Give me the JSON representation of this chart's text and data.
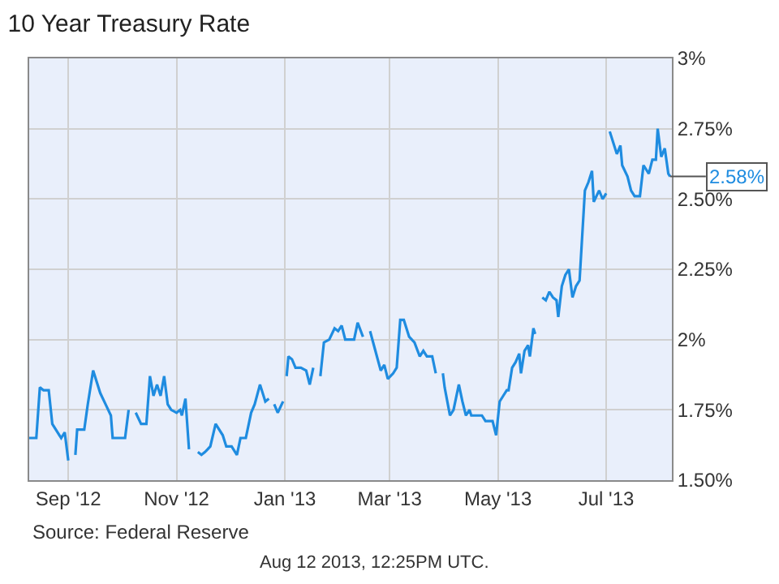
{
  "chart_data": {
    "type": "line",
    "title": "10 Year Treasury Rate",
    "x": [
      "2012-08-10",
      "2012-08-14",
      "2012-08-16",
      "2012-08-18",
      "2012-08-21",
      "2012-08-23",
      "2012-08-27",
      "2012-08-28",
      "2012-08-30",
      "2012-09-01",
      "2012-09-02",
      "2012-09-05",
      "2012-09-06",
      "2012-09-10",
      "2012-09-12",
      "2012-09-15",
      "2012-09-19",
      "2012-09-22",
      "2012-09-25",
      "2012-09-26",
      "2012-09-28",
      "2012-10-03",
      "2012-10-05",
      "2012-10-07",
      "2012-10-09",
      "2012-10-12",
      "2012-10-15",
      "2012-10-17",
      "2012-10-19",
      "2012-10-21",
      "2012-10-23",
      "2012-10-25",
      "2012-10-27",
      "2012-10-29",
      "2012-11-01",
      "2012-11-03",
      "2012-11-04",
      "2012-11-06",
      "2012-11-08",
      "2012-11-11",
      "2012-11-13",
      "2012-11-15",
      "2012-11-17",
      "2012-11-20",
      "2012-11-23",
      "2012-11-27",
      "2012-11-29",
      "2012-12-02",
      "2012-12-05",
      "2012-12-07",
      "2012-12-10",
      "2012-12-13",
      "2012-12-15",
      "2012-12-18",
      "2012-12-21",
      "2012-12-23",
      "2012-12-24",
      "2012-12-26",
      "2012-12-28",
      "2012-12-31",
      "2013-01-01",
      "2013-01-02",
      "2013-01-03",
      "2013-01-05",
      "2013-01-07",
      "2013-01-10",
      "2013-01-13",
      "2013-01-15",
      "2013-01-17",
      "2013-01-19",
      "2013-01-21",
      "2013-01-23",
      "2013-01-26",
      "2013-01-29",
      "2013-01-31",
      "2013-02-02",
      "2013-02-04",
      "2013-02-06",
      "2013-02-09",
      "2013-02-11",
      "2013-02-14",
      "2013-02-16",
      "2013-02-18",
      "2013-02-21",
      "2013-02-24",
      "2013-02-26",
      "2013-02-28",
      "2013-03-03",
      "2013-03-05",
      "2013-03-07",
      "2013-03-09",
      "2013-03-12",
      "2013-03-15",
      "2013-03-18",
      "2013-03-20",
      "2013-03-22",
      "2013-03-25",
      "2013-03-27",
      "2013-03-29",
      "2013-03-31",
      "2013-04-01",
      "2013-04-04",
      "2013-04-06",
      "2013-04-09",
      "2013-04-11",
      "2013-04-13",
      "2013-04-15",
      "2013-04-16",
      "2013-04-19",
      "2013-04-22",
      "2013-04-24",
      "2013-04-25",
      "2013-04-28",
      "2013-04-30",
      "2013-05-02",
      "2013-05-04",
      "2013-05-06",
      "2013-05-07",
      "2013-05-09",
      "2013-05-11",
      "2013-05-13",
      "2013-05-14",
      "2013-05-16",
      "2013-05-18",
      "2013-05-19",
      "2013-05-21",
      "2013-05-22",
      "2013-05-25",
      "2013-05-26",
      "2013-05-28",
      "2013-05-30",
      "2013-06-01",
      "2013-06-03",
      "2013-06-04",
      "2013-06-06",
      "2013-06-08",
      "2013-06-10",
      "2013-06-12",
      "2013-06-14",
      "2013-06-16",
      "2013-06-19",
      "2013-06-21",
      "2013-06-23",
      "2013-06-24",
      "2013-06-27",
      "2013-06-29",
      "2013-07-01",
      "2013-07-02",
      "2013-07-03",
      "2013-07-05",
      "2013-07-07",
      "2013-07-09",
      "2013-07-10",
      "2013-07-13",
      "2013-07-15",
      "2013-07-17",
      "2013-07-20",
      "2013-07-22",
      "2013-07-25",
      "2013-07-27",
      "2013-07-29",
      "2013-07-30",
      "2013-08-01",
      "2013-08-03",
      "2013-08-05",
      "2013-08-06"
    ],
    "series": [
      {
        "color": "#1f8ce0",
        "values": [
          1.65,
          1.65,
          1.83,
          1.82,
          1.82,
          1.7,
          1.66,
          1.65,
          1.67,
          1.57,
          null,
          1.59,
          1.68,
          1.68,
          1.77,
          1.89,
          1.81,
          1.77,
          1.73,
          1.65,
          1.65,
          1.65,
          1.75,
          null,
          1.74,
          1.7,
          1.7,
          1.87,
          1.8,
          1.84,
          1.8,
          1.87,
          1.77,
          1.75,
          1.74,
          1.75,
          1.73,
          1.79,
          1.61,
          null,
          1.6,
          1.59,
          1.6,
          1.62,
          1.7,
          1.66,
          1.62,
          1.62,
          1.59,
          1.65,
          1.65,
          1.74,
          1.77,
          1.84,
          1.78,
          1.79,
          null,
          1.77,
          1.74,
          1.78,
          null,
          1.87,
          1.94,
          1.93,
          1.9,
          1.9,
          1.89,
          1.84,
          1.9,
          null,
          1.87,
          1.99,
          2.0,
          2.04,
          2.03,
          2.05,
          2.0,
          2.0,
          2.0,
          2.06,
          2.01,
          null,
          2.03,
          1.96,
          1.89,
          1.91,
          1.86,
          1.88,
          1.9,
          2.07,
          2.07,
          2.01,
          1.99,
          1.94,
          1.96,
          1.94,
          1.94,
          1.88,
          null,
          1.88,
          1.83,
          1.73,
          1.75,
          1.84,
          1.78,
          1.73,
          1.75,
          1.73,
          1.73,
          1.73,
          1.71,
          1.71,
          1.71,
          1.66,
          1.78,
          1.8,
          1.82,
          1.82,
          1.9,
          1.92,
          1.95,
          1.88,
          1.96,
          1.98,
          1.94,
          2.04,
          2.02,
          null,
          2.15,
          2.14,
          2.17,
          2.15,
          2.14,
          2.08,
          2.19,
          2.23,
          2.25,
          2.15,
          2.19,
          2.21,
          2.53,
          2.56,
          2.6,
          2.49,
          2.53,
          2.5,
          2.52,
          null,
          2.74,
          2.7,
          2.66,
          2.69,
          2.62,
          2.58,
          2.53,
          2.51,
          2.51,
          2.62,
          2.59,
          2.64,
          2.64,
          2.75,
          2.65,
          2.68,
          2.59,
          2.58
        ]
      }
    ],
    "xlim": [
      "2012-08-10",
      "2013-08-07"
    ],
    "xticks": [
      {
        "value": "2012-09-01",
        "label": "Sep '12"
      },
      {
        "value": "2012-11-01",
        "label": "Nov '12"
      },
      {
        "value": "2013-01-01",
        "label": "Jan '13"
      },
      {
        "value": "2013-03-01",
        "label": "Mar '13"
      },
      {
        "value": "2013-05-01",
        "label": "May '13"
      },
      {
        "value": "2013-07-01",
        "label": "Jul '13"
      }
    ],
    "ylim": [
      1.5,
      3
    ],
    "yticks": [
      {
        "value": 1.5,
        "label": "1.50%"
      },
      {
        "value": 1.75,
        "label": "1.75%"
      },
      {
        "value": 2,
        "label": "2%"
      },
      {
        "value": 2.25,
        "label": "2.25%"
      },
      {
        "value": 2.5,
        "label": "2.50%"
      },
      {
        "value": 2.75,
        "label": "2.75%"
      },
      {
        "value": 3,
        "label": "3%"
      }
    ],
    "grid": true,
    "marker": "none",
    "line_style": "solid",
    "annotations": [
      {
        "text": "2.58%",
        "x": "2013-08-06",
        "y": 2.58
      },
      "Source: Federal Reserve",
      "Aug 12 2013, 12:25PM UTC."
    ]
  }
}
